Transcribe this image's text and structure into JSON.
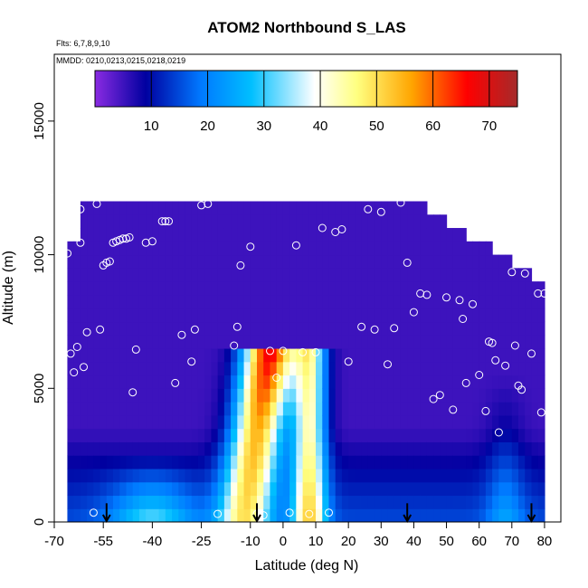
{
  "title": "ATOM2 Northbound S_LAS",
  "flights_label": "Flts: 6,7,8,9,10",
  "dates_label": "MMDD: 0210,0213,0215,0218,0219",
  "chart_data": {
    "type": "heatmap",
    "title": "ATOM2 Northbound S_LAS",
    "xlabel": "Latitude (deg N)",
    "ylabel": "Altitude (m)",
    "xlim": [
      -70,
      85
    ],
    "ylim": [
      0,
      17500
    ],
    "x_ticks": [
      -70,
      -55,
      -40,
      -25,
      -10,
      0,
      10,
      20,
      30,
      40,
      50,
      60,
      70,
      80
    ],
    "x_tick_labels": [
      "-70",
      "-55",
      "-40",
      "-25",
      "-10",
      "0",
      "10",
      "20",
      "30",
      "40",
      "50",
      "60",
      "70",
      "80"
    ],
    "y_ticks": [
      0,
      5000,
      10000,
      15000
    ],
    "y_tick_labels": [
      "0",
      "5000",
      "10000",
      "15000"
    ],
    "colorbar": {
      "min": 0,
      "max": 75,
      "ticks": [
        10,
        20,
        30,
        40,
        50,
        60,
        70
      ],
      "tick_labels": [
        "10",
        "20",
        "30",
        "40",
        "50",
        "60",
        "70"
      ],
      "colors": [
        "#8a2be2",
        "#0000a0",
        "#0078ff",
        "#00bfff",
        "#ffffff",
        "#ffff80",
        "#ffa500",
        "#ff0000",
        "#a52a2a"
      ]
    },
    "data_extent": {
      "lat_min": -66,
      "lat_max": 80,
      "alt_max": 12000
    },
    "plume": {
      "lat_center_low": -12,
      "lat_center_high": -4,
      "alt_top": 6500,
      "max_value": 73,
      "secondary_lat": 8,
      "secondary_value": 48
    },
    "sample_points": [
      [
        -66,
        10050
      ],
      [
        -65,
        6300
      ],
      [
        -64,
        5600
      ],
      [
        -63,
        6550
      ],
      [
        -62,
        10450
      ],
      [
        -62,
        11700
      ],
      [
        -61,
        5800
      ],
      [
        -60,
        7100
      ],
      [
        -58,
        350
      ],
      [
        -57,
        11900
      ],
      [
        -56,
        7200
      ],
      [
        -55,
        9600
      ],
      [
        -54,
        9700
      ],
      [
        -53,
        9750
      ],
      [
        -52,
        10450
      ],
      [
        -51,
        10500
      ],
      [
        -50,
        10550
      ],
      [
        -49,
        10600
      ],
      [
        -48,
        10600
      ],
      [
        -47,
        10650
      ],
      [
        -46,
        4850
      ],
      [
        -45,
        6450
      ],
      [
        -42,
        10450
      ],
      [
        -40,
        10500
      ],
      [
        -37,
        11250
      ],
      [
        -36,
        11250
      ],
      [
        -35,
        11250
      ],
      [
        -33,
        5200
      ],
      [
        -31,
        7000
      ],
      [
        -28,
        6000
      ],
      [
        -27,
        7200
      ],
      [
        -25,
        11850
      ],
      [
        -23,
        11900
      ],
      [
        -20,
        300
      ],
      [
        -15,
        6600
      ],
      [
        -14,
        7300
      ],
      [
        -13,
        9600
      ],
      [
        -10,
        10300
      ],
      [
        -8,
        300
      ],
      [
        -6,
        250
      ],
      [
        -4,
        6400
      ],
      [
        -2,
        5400
      ],
      [
        0,
        6400
      ],
      [
        2,
        350
      ],
      [
        4,
        10350
      ],
      [
        6,
        6350
      ],
      [
        8,
        300
      ],
      [
        10,
        6350
      ],
      [
        12,
        11000
      ],
      [
        14,
        350
      ],
      [
        16,
        10850
      ],
      [
        18,
        10950
      ],
      [
        20,
        6000
      ],
      [
        24,
        7300
      ],
      [
        26,
        11700
      ],
      [
        28,
        7200
      ],
      [
        30,
        11600
      ],
      [
        32,
        5900
      ],
      [
        34,
        7250
      ],
      [
        36,
        11950
      ],
      [
        38,
        9700
      ],
      [
        40,
        7850
      ],
      [
        42,
        8550
      ],
      [
        44,
        8500
      ],
      [
        46,
        4600
      ],
      [
        48,
        4750
      ],
      [
        50,
        8400
      ],
      [
        52,
        4200
      ],
      [
        54,
        8300
      ],
      [
        55,
        7600
      ],
      [
        56,
        5200
      ],
      [
        58,
        8150
      ],
      [
        60,
        5500
      ],
      [
        62,
        4150
      ],
      [
        63,
        6750
      ],
      [
        64,
        6700
      ],
      [
        65,
        6050
      ],
      [
        66,
        3350
      ],
      [
        68,
        5850
      ],
      [
        70,
        9350
      ],
      [
        71,
        6600
      ],
      [
        72,
        5100
      ],
      [
        73,
        4950
      ],
      [
        74,
        9300
      ],
      [
        76,
        6300
      ],
      [
        78,
        8550
      ],
      [
        79,
        4100
      ],
      [
        80,
        8550
      ]
    ],
    "arrows_lat": [
      -54,
      -8,
      38,
      76
    ]
  }
}
